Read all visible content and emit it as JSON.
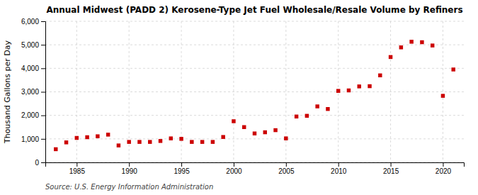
{
  "chart_data": {
    "type": "scatter",
    "title": "Annual Midwest (PADD 2) Kerosene-Type Jet Fuel Wholesale/Resale Volume by Refiners",
    "ylabel": "Thousand Gallons per Day",
    "source": "Source: U.S. Energy Information Administration",
    "x": [
      1983,
      1984,
      1985,
      1986,
      1987,
      1988,
      1989,
      1990,
      1991,
      1992,
      1993,
      1994,
      1995,
      1996,
      1997,
      1998,
      1999,
      2000,
      2001,
      2002,
      2003,
      2004,
      2005,
      2006,
      2007,
      2008,
      2009,
      2010,
      2011,
      2012,
      2013,
      2014,
      2015,
      2016,
      2017,
      2018,
      2019,
      2020,
      2021
    ],
    "values": [
      560,
      850,
      1040,
      1070,
      1110,
      1180,
      720,
      870,
      870,
      870,
      910,
      1020,
      1000,
      870,
      870,
      870,
      1080,
      1750,
      1500,
      1230,
      1280,
      1370,
      1020,
      1950,
      1980,
      2380,
      2270,
      3040,
      3060,
      3230,
      3240,
      3700,
      4480,
      4890,
      5130,
      5110,
      4970,
      2830,
      3950
    ],
    "color": "#cc0000",
    "marker": "square",
    "xlim": [
      1982,
      2022
    ],
    "xticks": [
      1985,
      1990,
      1995,
      2000,
      2005,
      2010,
      2015,
      2020
    ],
    "ylim": [
      0,
      6000
    ],
    "yticks": [
      0,
      {
        "value": 1000,
        "label": "1,000"
      },
      {
        "value": 2000,
        "label": "2,000"
      },
      {
        "value": 3000,
        "label": "3,000"
      },
      {
        "value": 4000,
        "label": "4,000"
      },
      {
        "value": 5000,
        "label": "5,000"
      },
      {
        "value": 6000,
        "label": "6,000"
      }
    ],
    "grid": true
  }
}
